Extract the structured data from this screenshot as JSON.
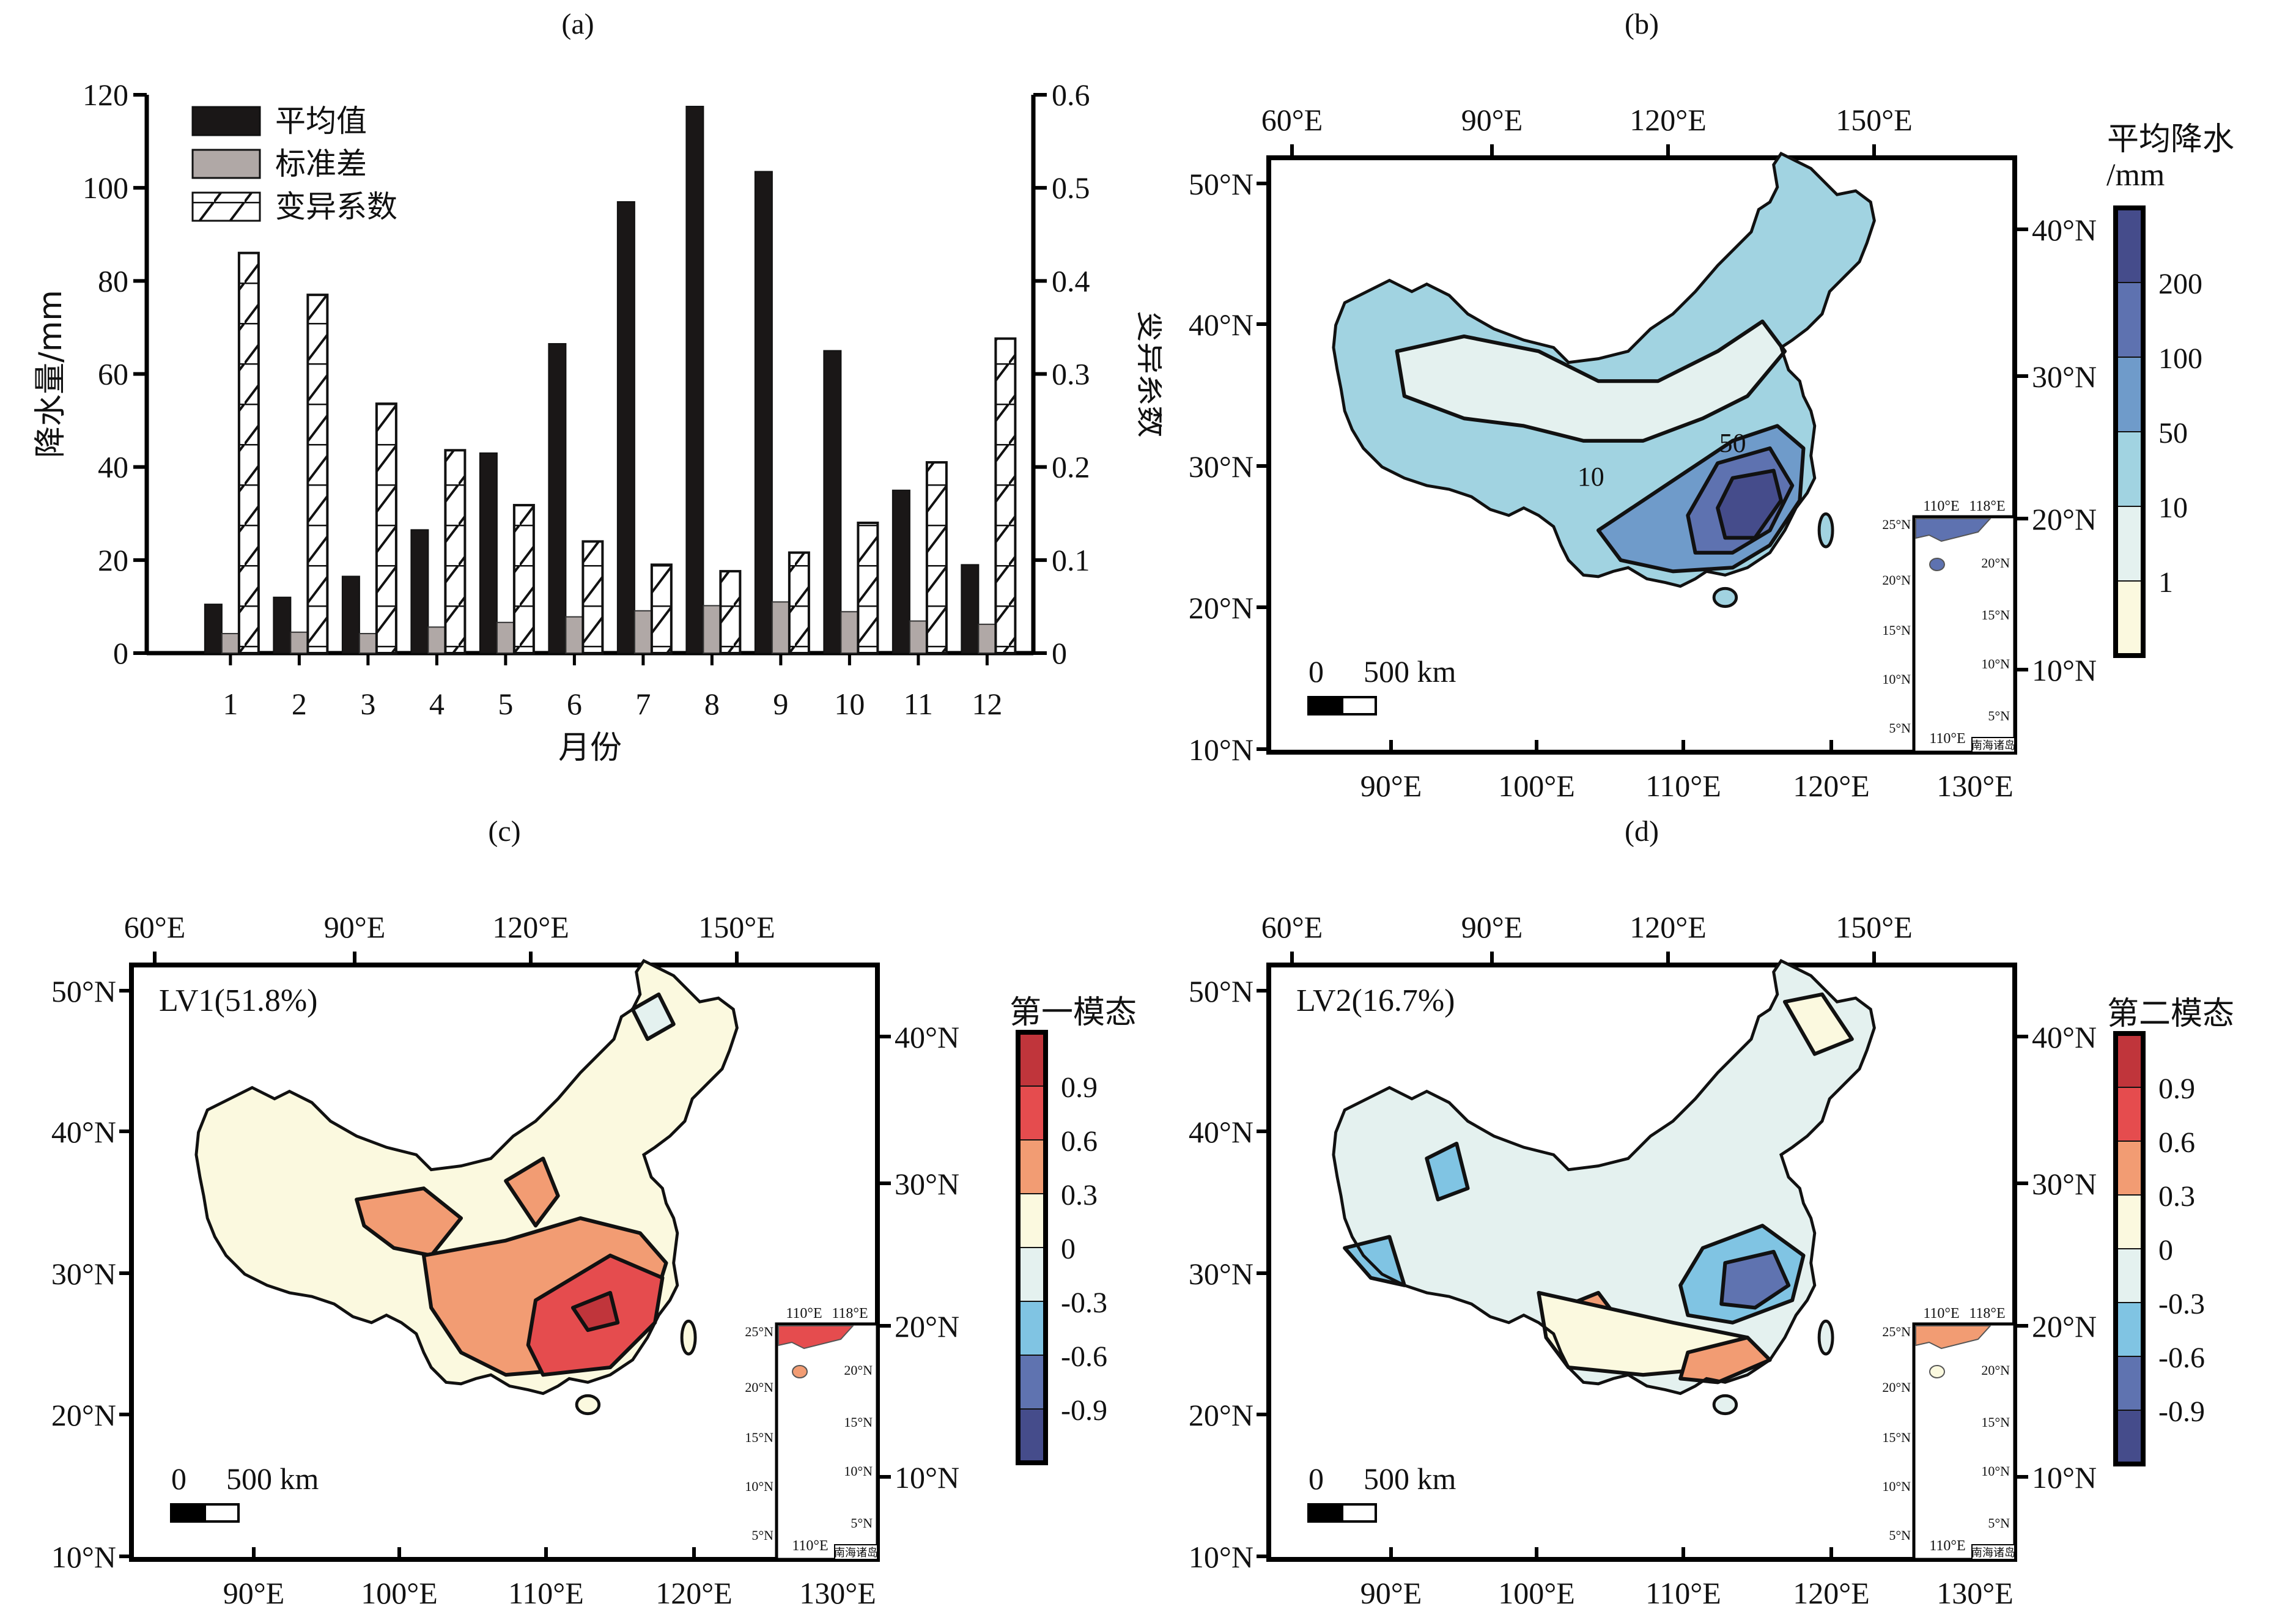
{
  "figure": {
    "panels": [
      "(a)",
      "(b)",
      "(c)",
      "(d)"
    ]
  },
  "chart_data": [
    {
      "type": "bar",
      "panel": "(a)",
      "title": "(a)",
      "xlabel": "月份",
      "ylabel": "降水量/mm",
      "y2label": "变异系数",
      "categories": [
        "1",
        "2",
        "3",
        "4",
        "5",
        "6",
        "7",
        "8",
        "9",
        "10",
        "11",
        "12"
      ],
      "ylim": [
        0,
        120
      ],
      "yticks": [
        "0",
        "20",
        "40",
        "60",
        "80",
        "100",
        "120"
      ],
      "y2lim": [
        0,
        0.6
      ],
      "y2ticks": [
        "0",
        "0.1",
        "0.2",
        "0.3",
        "0.4",
        "0.5",
        "0.6"
      ],
      "legend_position": "top-left",
      "series": [
        {
          "name": "平均值",
          "axis": "left",
          "color": "#1a1717",
          "values": [
            10.5,
            12.0,
            16.5,
            26.5,
            43.0,
            66.5,
            97.0,
            117.5,
            103.5,
            65.0,
            35.0,
            19.0
          ]
        },
        {
          "name": "标准差",
          "axis": "left",
          "color": "#b0a8a6",
          "values": [
            4.2,
            4.5,
            4.2,
            5.6,
            6.6,
            7.8,
            9.1,
            10.2,
            11.0,
            8.9,
            6.9,
            6.2
          ]
        },
        {
          "name": "变异系数",
          "axis": "right",
          "pattern": "hatch",
          "values": [
            0.43,
            0.385,
            0.268,
            0.218,
            0.159,
            0.12,
            0.095,
            0.088,
            0.108,
            0.14,
            0.205,
            0.338
          ]
        }
      ]
    },
    {
      "type": "heatmap",
      "panel": "(b)",
      "title": "(b)",
      "colorbar_title": "平均降水",
      "colorbar_unit": "/mm",
      "levels": [
        "1",
        "10",
        "50",
        "100",
        "200"
      ],
      "colors": [
        "#fbf9df",
        "#e4f1ef",
        "#a1d3e1",
        "#6f9bca",
        "#5e72b0",
        "#454c8b"
      ],
      "contour_labels": [
        "10",
        "50"
      ],
      "top_lon_ticks": [
        "60°E",
        "90°E",
        "120°E",
        "150°E"
      ],
      "bottom_lon_ticks": [
        "90°E",
        "100°E",
        "110°E",
        "120°E",
        "130°E"
      ],
      "left_lat_ticks": [
        "10°N",
        "20°N",
        "30°N",
        "40°N",
        "50°N"
      ],
      "right_lat_ticks": [
        "10°N",
        "20°N",
        "30°N",
        "40°N"
      ],
      "scalebar": {
        "start": "0",
        "end": "500 km"
      },
      "inset": {
        "top_ticks": [
          "110°E",
          "118°E"
        ],
        "bottom_tick": "110°E",
        "left_ticks": [
          "5°N",
          "10°N",
          "15°N",
          "20°N",
          "25°N"
        ],
        "right_ticks": [
          "5°N",
          "10°N",
          "15°N",
          "20°N"
        ],
        "label": "南海诸岛"
      }
    },
    {
      "type": "heatmap",
      "panel": "(c)",
      "title": "(c)",
      "annotation": "LV1(51.8%)",
      "colorbar_title": "第一模态",
      "levels": [
        "-0.9",
        "-0.6",
        "-0.3",
        "0",
        "0.3",
        "0.6",
        "0.9"
      ],
      "colors": [
        "#454c8b",
        "#5f73b0",
        "#80c4e3",
        "#e4f1ef",
        "#fbf9df",
        "#f29c73",
        "#e54c4e",
        "#c0353b"
      ],
      "top_lon_ticks": [
        "60°E",
        "90°E",
        "120°E",
        "150°E"
      ],
      "bottom_lon_ticks": [
        "90°E",
        "100°E",
        "110°E",
        "120°E",
        "130°E"
      ],
      "left_lat_ticks": [
        "10°N",
        "20°N",
        "30°N",
        "40°N",
        "50°N"
      ],
      "right_lat_ticks": [
        "10°N",
        "20°N",
        "30°N",
        "40°N"
      ],
      "scalebar": {
        "start": "0",
        "end": "500 km"
      },
      "inset": {
        "top_ticks": [
          "110°E",
          "118°E"
        ],
        "bottom_tick": "110°E",
        "left_ticks": [
          "5°N",
          "10°N",
          "15°N",
          "20°N",
          "25°N"
        ],
        "right_ticks": [
          "5°N",
          "10°N",
          "15°N",
          "20°N"
        ],
        "label": "南海诸岛"
      }
    },
    {
      "type": "heatmap",
      "panel": "(d)",
      "title": "(d)",
      "annotation": "LV2(16.7%)",
      "colorbar_title": "第二模态",
      "levels": [
        "-0.9",
        "-0.6",
        "-0.3",
        "0",
        "0.3",
        "0.6",
        "0.9"
      ],
      "colors": [
        "#454c8b",
        "#5f73b0",
        "#80c4e3",
        "#e4f1ef",
        "#fbf9df",
        "#f29c73",
        "#e54c4e",
        "#c0353b"
      ],
      "top_lon_ticks": [
        "60°E",
        "90°E",
        "120°E",
        "150°E"
      ],
      "bottom_lon_ticks": [
        "90°E",
        "100°E",
        "110°E",
        "120°E",
        "130°E"
      ],
      "left_lat_ticks": [
        "10°N",
        "20°N",
        "30°N",
        "40°N",
        "50°N"
      ],
      "right_lat_ticks": [
        "10°N",
        "20°N",
        "30°N",
        "40°N"
      ],
      "scalebar": {
        "start": "0",
        "end": "500 km"
      },
      "inset": {
        "top_ticks": [
          "110°E",
          "118°E"
        ],
        "bottom_tick": "110°E",
        "left_ticks": [
          "5°N",
          "10°N",
          "15°N",
          "20°N",
          "25°N"
        ],
        "right_ticks": [
          "5°N",
          "10°N",
          "15°N",
          "20°N"
        ],
        "label": "南海诸岛"
      }
    }
  ]
}
